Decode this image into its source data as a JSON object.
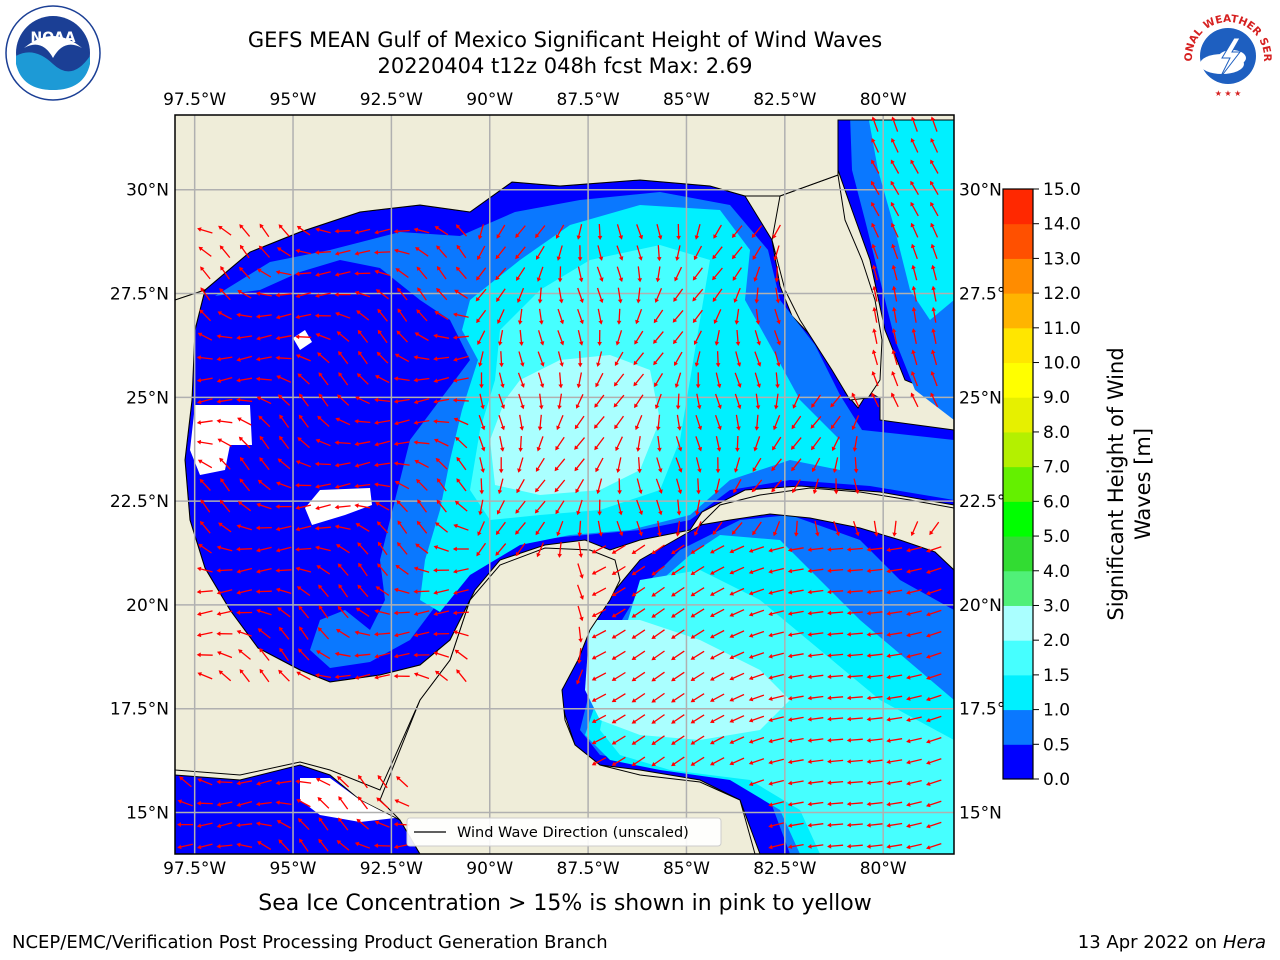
{
  "title": {
    "line1": "GEFS MEAN Gulf of Mexico Significant Height of Wind Waves",
    "line2": "20220404 t12z 048h fcst   Max: 2.69"
  },
  "axes": {
    "lon_labels": [
      "97.5°W",
      "95°W",
      "92.5°W",
      "90°W",
      "87.5°W",
      "85°W",
      "82.5°W",
      "80°W"
    ],
    "lon_values": [
      -97.5,
      -95,
      -92.5,
      -90,
      -87.5,
      -85,
      -82.5,
      -80
    ],
    "lat_labels": [
      "30°N",
      "27.5°N",
      "25°N",
      "22.5°N",
      "20°N",
      "17.5°N",
      "15°N"
    ],
    "lat_values": [
      30,
      27.5,
      25,
      22.5,
      20,
      17.5,
      15
    ],
    "lon_range": [
      -98,
      -78.2
    ],
    "lat_range": [
      14,
      31.8
    ],
    "grid": true
  },
  "legend": {
    "label": "Wind Wave Direction (unscaled)",
    "position": "lower-center"
  },
  "colorbar": {
    "label": "Significant Height of Wind Waves [m]",
    "ticks": [
      "0.0",
      "0.5",
      "1.0",
      "1.5",
      "2.0",
      "3.0",
      "4.0",
      "5.0",
      "6.0",
      "7.0",
      "8.0",
      "9.0",
      "10.0",
      "11.0",
      "12.0",
      "13.0",
      "14.0",
      "15.0"
    ],
    "colors": [
      "#0000ff",
      "#0a78ff",
      "#00f0ff",
      "#46ffff",
      "#aaffff",
      "#50f078",
      "#32dc32",
      "#00ff00",
      "#64f000",
      "#b4f000",
      "#e6f000",
      "#ffff00",
      "#ffe600",
      "#ffb400",
      "#ff8c00",
      "#ff5000",
      "#ff2800",
      "#ff0000"
    ]
  },
  "ice_note": "Sea Ice Concentration > 15% is shown in pink to yellow",
  "footer": {
    "left": "NCEP/EMC/Verification Post Processing Product Generation Branch",
    "right_date": "13 Apr 2022 on ",
    "right_machine": "Hera"
  },
  "logos": {
    "noaa": "NOAA",
    "nws": "NATIONAL WEATHER SERVICE"
  },
  "colors": {
    "land": "#efedd9",
    "arrow": "#ff0000",
    "grid": "#b0b0b0"
  }
}
